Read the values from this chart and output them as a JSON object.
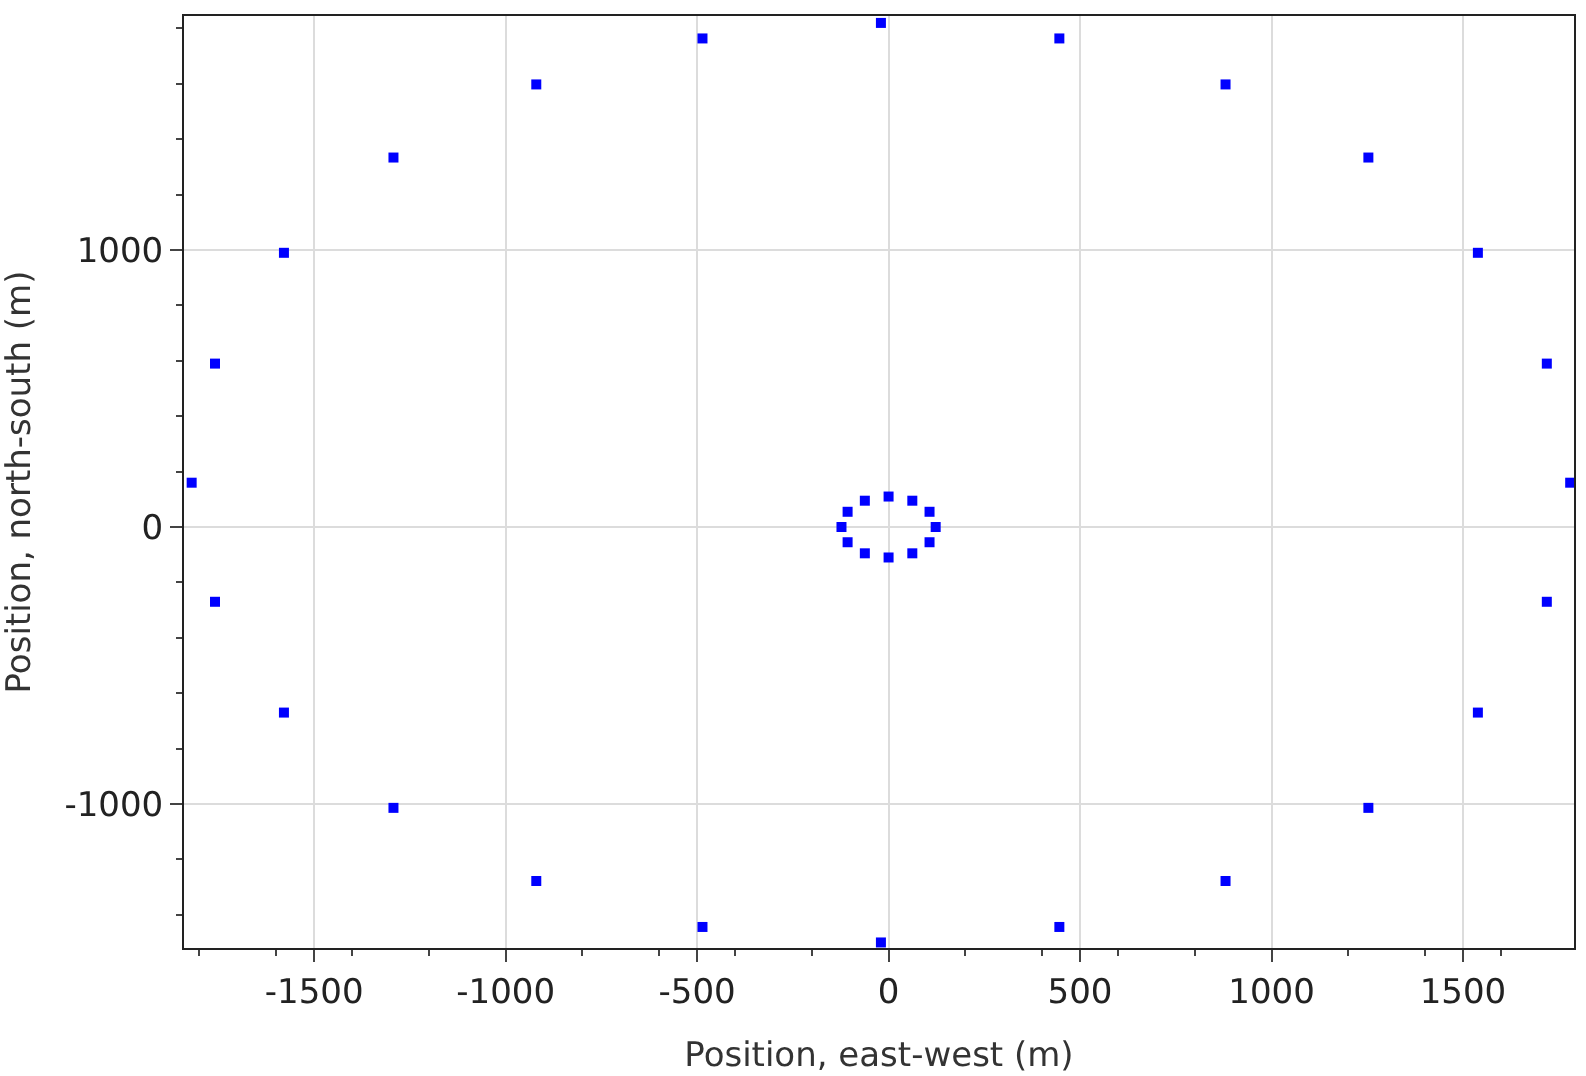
{
  "chart_data": {
    "type": "scatter",
    "xlabel": "Position, east-west (m)",
    "ylabel": "Position, north-south (m)",
    "xlim": [
      -1840,
      1790
    ],
    "ylim": [
      -1520,
      1845
    ],
    "xticks": [
      -1500,
      -1000,
      -500,
      0,
      500,
      1000,
      1500
    ],
    "yticks": [
      -1000,
      0,
      1000
    ],
    "grid": true,
    "marker": "square",
    "series": [
      {
        "color": "#0000ff",
        "x": [
          1780,
          1719,
          1539,
          1253,
          880,
          446,
          -20,
          -486,
          -920,
          -1293,
          -1579,
          -1759,
          -1820,
          -1759,
          -1579,
          -1293,
          -920,
          -486,
          -20,
          446,
          880,
          1253,
          1539,
          1719
        ],
        "values": [
          160,
          590,
          990,
          1334,
          1598,
          1764,
          1820,
          1764,
          1598,
          1334,
          990,
          590,
          160,
          -270,
          -670,
          -1014,
          -1278,
          -1444,
          -1500,
          -1444,
          -1278,
          -1014,
          -670,
          -270
        ]
      },
      {
        "color": "#0000ff",
        "x": [
          123,
          107,
          62,
          0,
          -62,
          -107,
          -123,
          -107,
          -62,
          0,
          62,
          107
        ],
        "values": [
          0,
          55,
          95,
          110,
          95,
          55,
          0,
          -55,
          -95,
          -110,
          -95,
          -55
        ]
      }
    ]
  }
}
